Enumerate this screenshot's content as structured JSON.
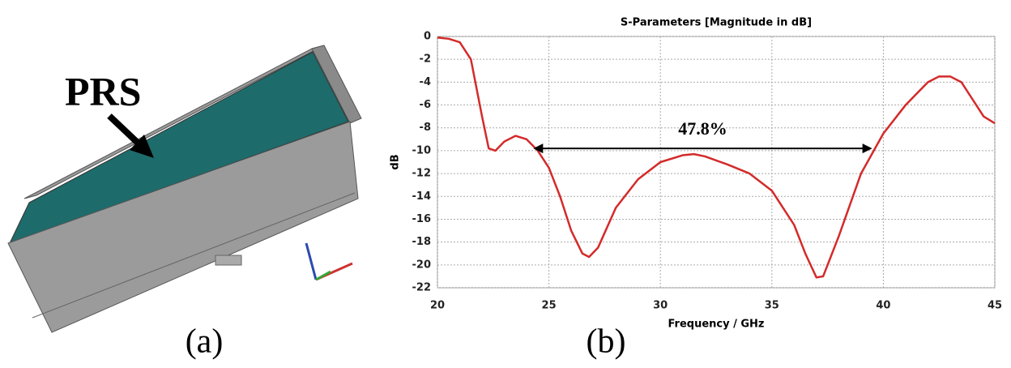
{
  "panel_a": {
    "label": "PRS",
    "caption": "(a)"
  },
  "caption_b": "(b)",
  "chart_data": {
    "type": "line",
    "title": "S-Parameters [Magnitude in dB]",
    "xlabel": "Frequency / GHz",
    "ylabel": "dB",
    "xlim": [
      20,
      45
    ],
    "ylim": [
      -22,
      0
    ],
    "xticks": [
      20,
      25,
      30,
      35,
      40,
      45
    ],
    "yticks": [
      0,
      -2,
      -4,
      -6,
      -8,
      -10,
      -12,
      -14,
      -16,
      -18,
      -20,
      -22
    ],
    "grid": true,
    "series": [
      {
        "color": "#d42a2a",
        "x": [
          20,
          20.5,
          21,
          21.5,
          22,
          22.3,
          22.6,
          23,
          23.5,
          24,
          24.5,
          25,
          25.5,
          26,
          26.5,
          26.8,
          27.2,
          28,
          29,
          30,
          31,
          31.5,
          32,
          33,
          34,
          35,
          36,
          36.5,
          37,
          37.3,
          38,
          39,
          40,
          41,
          42,
          42.5,
          43,
          43.5,
          44,
          44.5,
          45
        ],
        "values": [
          -0.1,
          -0.2,
          -0.5,
          -2,
          -7,
          -9.8,
          -10,
          -9.2,
          -8.7,
          -9,
          -10,
          -11.5,
          -14,
          -17,
          -19,
          -19.3,
          -18.5,
          -15,
          -12.5,
          -11,
          -10.4,
          -10.3,
          -10.5,
          -11.2,
          -12,
          -13.5,
          -16.5,
          -19,
          -21.1,
          -21,
          -17.5,
          -12,
          -8.5,
          -6,
          -4,
          -3.5,
          -3.5,
          -4,
          -5.5,
          -7,
          -7.6
        ]
      }
    ],
    "annotation": {
      "text": "47.8%",
      "x": [
        24.3,
        39.5
      ],
      "y": -9.8
    }
  }
}
